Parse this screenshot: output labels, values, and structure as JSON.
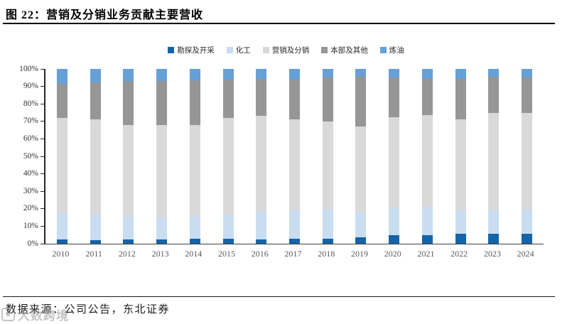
{
  "figure": {
    "title": "图 22：营销及分销业务贡献主要营收",
    "source_note": "数据来源：公司公告，东北证券",
    "watermark_text": "大数跨境"
  },
  "colors": {
    "exploration_blue": "#1563A8",
    "chemical_light_blue": "#C9DDF1",
    "marketing_light_gray": "#D9D9D9",
    "hq_dark_gray": "#969696",
    "refining_blue": "#66A0D8",
    "axis": "#262626",
    "x_label": "#595959",
    "y_label": "#333333"
  },
  "chart_data": {
    "type": "bar",
    "stacked": true,
    "unit": "%",
    "title": "营销及分销业务贡献主要营收",
    "xlabel": "",
    "ylabel": "",
    "ylim": [
      0,
      100
    ],
    "ytick_step": 10,
    "ytick_labels": [
      "0%",
      "10%",
      "20%",
      "30%",
      "40%",
      "50%",
      "60%",
      "70%",
      "80%",
      "90%",
      "100%"
    ],
    "grid": false,
    "legend_position": "top-center",
    "categories": [
      "2010",
      "2011",
      "2012",
      "2013",
      "2014",
      "2015",
      "2016",
      "2017",
      "2018",
      "2019",
      "2020",
      "2021",
      "2022",
      "2023",
      "2024"
    ],
    "series": [
      {
        "name": "勘探及开采",
        "color": "#1563A8",
        "values": [
          2.5,
          2.0,
          2.5,
          2.5,
          3.0,
          3.0,
          2.5,
          3.0,
          3.0,
          3.5,
          5.0,
          5.0,
          5.5,
          5.5,
          5.5
        ]
      },
      {
        "name": "化工",
        "color": "#C9DDF1",
        "values": [
          15.0,
          14.5,
          13.0,
          12.5,
          13.0,
          13.5,
          16.0,
          16.0,
          16.5,
          15.0,
          15.5,
          16.0,
          13.5,
          13.5,
          14.0
        ]
      },
      {
        "name": "营销及分销",
        "color": "#D9D9D9",
        "values": [
          54.5,
          54.5,
          52.5,
          53.0,
          52.0,
          55.5,
          54.5,
          52.0,
          50.5,
          48.5,
          52.0,
          52.5,
          52.0,
          56.0,
          55.5
        ]
      },
      {
        "name": "本部及其他",
        "color": "#969696",
        "values": [
          19.5,
          21.5,
          25.0,
          25.0,
          25.5,
          22.0,
          21.5,
          23.0,
          25.0,
          28.5,
          22.5,
          21.0,
          23.5,
          20.5,
          20.0
        ]
      },
      {
        "name": "炼油",
        "color": "#66A0D8",
        "values": [
          8.5,
          7.5,
          7.0,
          7.0,
          6.5,
          6.0,
          5.5,
          6.0,
          5.0,
          4.5,
          5.0,
          5.5,
          5.5,
          4.5,
          5.0
        ]
      }
    ]
  }
}
